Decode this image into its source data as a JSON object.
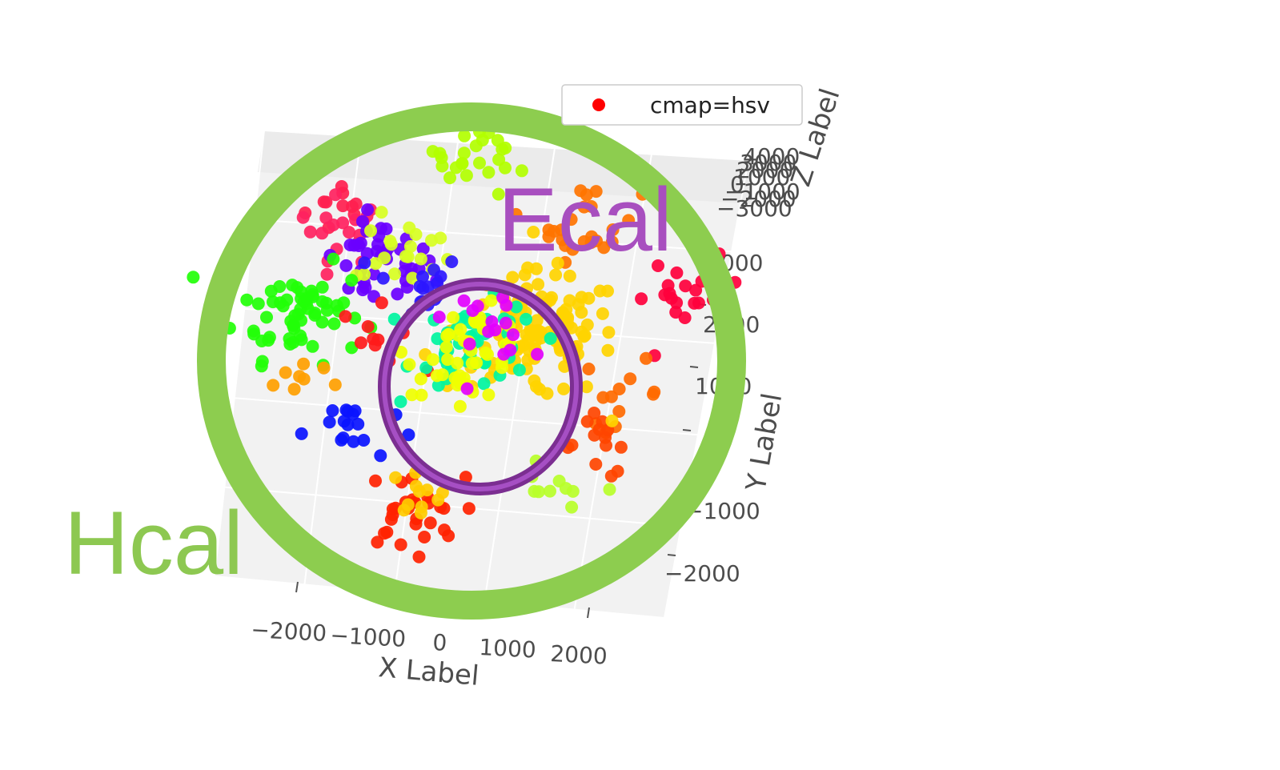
{
  "chart_data": {
    "type": "scatter",
    "projection": "3d",
    "legend": {
      "entries": [
        "cmap=hsv"
      ],
      "marker_color": "#ff0000",
      "placement": "top-right"
    },
    "xlabel": "X Label",
    "ylabel": "Y Label",
    "zlabel": "Z Label",
    "x_ticks": [
      "−2000",
      "−1000",
      "0",
      "1000",
      "2000"
    ],
    "y_ticks": [
      "2000",
      "1000",
      "−1000",
      "−2000"
    ],
    "z_ticks": [
      "4000",
      "3000",
      "2000",
      "1000",
      "0",
      "−1000",
      "−2000",
      "−3000"
    ],
    "xlim": [
      -2500,
      2500
    ],
    "ylim": [
      -2500,
      2500
    ],
    "grid": true,
    "colormap": "hsv",
    "clusters": [
      {
        "color": "#ff1f4f",
        "x": -1550,
        "y": 1700,
        "n": 10
      },
      {
        "color": "#ff2260",
        "x": -1600,
        "y": 1450,
        "n": 18
      },
      {
        "color": "#b2ff00",
        "x": -200,
        "y": 2400,
        "n": 30
      },
      {
        "color": "#6a00ff",
        "x": -1150,
        "y": 1100,
        "n": 40
      },
      {
        "color": "#d8ff22",
        "x": -900,
        "y": 1250,
        "n": 20
      },
      {
        "color": "#2c17ff",
        "x": -750,
        "y": 900,
        "n": 18
      },
      {
        "color": "#22ff08",
        "x": -1900,
        "y": 500,
        "n": 60
      },
      {
        "color": "#ff1a1a",
        "x": -1050,
        "y": 300,
        "n": 10
      },
      {
        "color": "#ffa000",
        "x": -1800,
        "y": -200,
        "n": 8
      },
      {
        "color": "#0a14ff",
        "x": -1250,
        "y": -700,
        "n": 18
      },
      {
        "color": "#ff7400",
        "x": 950,
        "y": 1700,
        "n": 24
      },
      {
        "color": "#ff003c",
        "x": 2150,
        "y": 1000,
        "n": 22
      },
      {
        "color": "#ff6a00",
        "x": 1600,
        "y": -100,
        "n": 12
      },
      {
        "color": "#ff4500",
        "x": 1500,
        "y": -700,
        "n": 14
      },
      {
        "color": "#ffd400",
        "x": 600,
        "y": 450,
        "n": 120
      },
      {
        "color": "#00f5a0",
        "x": 0,
        "y": 250,
        "n": 50
      },
      {
        "color": "#f0ff00",
        "x": -100,
        "y": 200,
        "n": 45
      },
      {
        "color": "#e300ff",
        "x": 100,
        "y": 550,
        "n": 16
      },
      {
        "color": "#b8ff2a",
        "x": 1000,
        "y": -1300,
        "n": 10
      },
      {
        "color": "#ff2200",
        "x": -450,
        "y": -1600,
        "n": 28
      },
      {
        "color": "#ffcc00",
        "x": -450,
        "y": -1400,
        "n": 12
      }
    ]
  },
  "annotations": {
    "ecal": {
      "label": "Ecal",
      "color": "#a84fbf"
    },
    "hcal": {
      "label": "Hcal",
      "color": "#8dc851"
    }
  }
}
